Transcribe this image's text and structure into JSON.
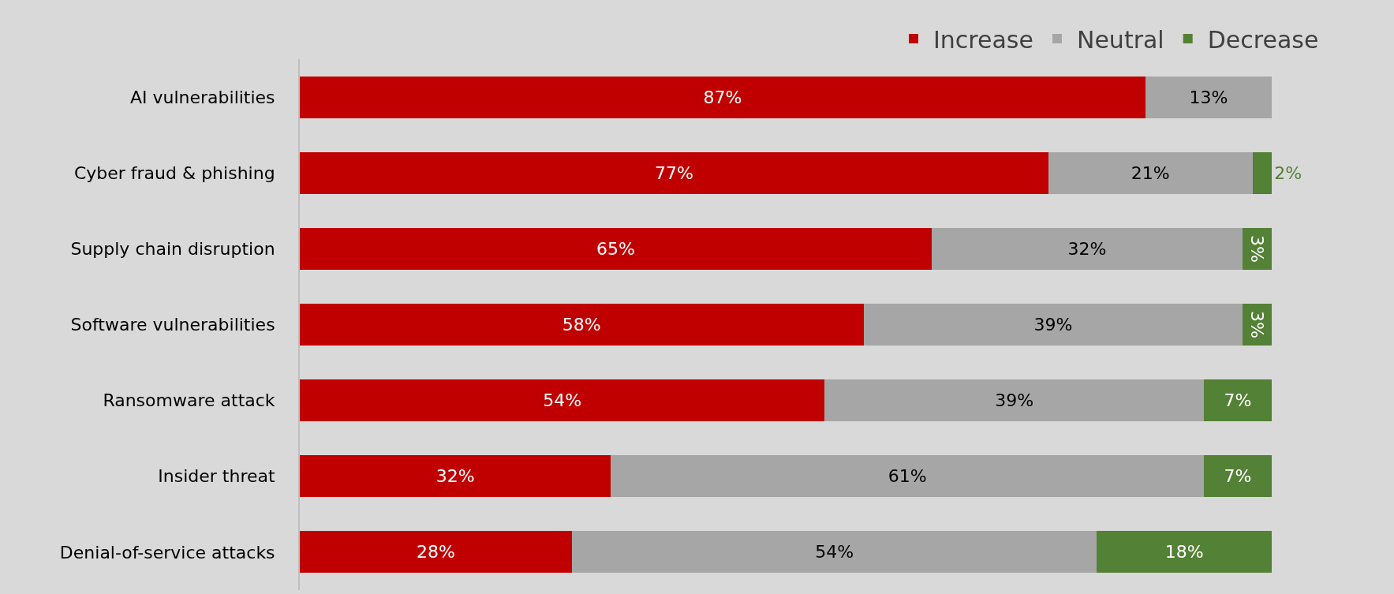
{
  "chart_data": {
    "type": "bar",
    "orientation": "horizontal",
    "stacked": true,
    "legend": "top",
    "grid": false,
    "tick_labels": "y",
    "categories": [
      "AI vulnerabilities",
      "Cyber fraud & phishing",
      "Supply chain disruption",
      "Software vulnerabilities",
      "Ransomware attack",
      "Insider threat",
      "Denial-of-service attacks"
    ],
    "series": [
      {
        "name": "Increase",
        "color": "#c00000",
        "values": [
          87,
          77,
          65,
          58,
          54,
          32,
          28
        ],
        "value_labels": [
          "87%",
          "77%",
          "65%",
          "58%",
          "54%",
          "32%",
          "28%"
        ]
      },
      {
        "name": "Neutral",
        "color": "#a6a6a6",
        "values": [
          13,
          21,
          32,
          39,
          39,
          61,
          54
        ],
        "value_labels": [
          "13%",
          "21%",
          "32%",
          "39%",
          "39%",
          "61%",
          "54%"
        ]
      },
      {
        "name": "Decrease",
        "color": "#538135",
        "values": [
          null,
          2,
          3,
          3,
          7,
          7,
          18
        ],
        "value_labels": [
          null,
          "2%",
          "3%",
          "3%",
          "7%",
          "7%",
          "18%"
        ]
      }
    ]
  }
}
